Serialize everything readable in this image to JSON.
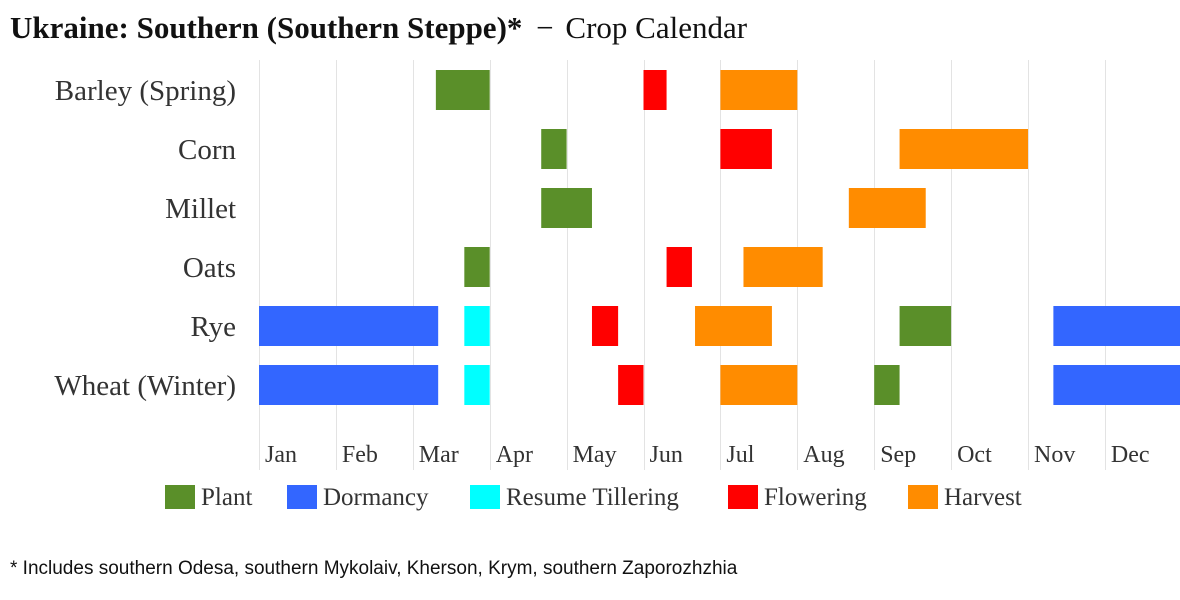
{
  "title": {
    "main": "Ukraine: Southern (Southern Steppe)*",
    "separator": "−",
    "sub": "Crop Calendar"
  },
  "footnote": "* Includes southern Odesa, southern Mykolaiv, Kherson, Krym, southern Zaporozhzhia",
  "chart_data": {
    "type": "gantt",
    "crops": [
      "Barley (Spring)",
      "Corn",
      "Millet",
      "Oats",
      "Rye",
      "Wheat (Winter)"
    ],
    "months": [
      "Jan",
      "Feb",
      "Mar",
      "Apr",
      "May",
      "Jun",
      "Jul",
      "Aug",
      "Sep",
      "Oct",
      "Nov",
      "Dec"
    ],
    "stages": [
      {
        "name": "Plant",
        "color": "#5a8f29"
      },
      {
        "name": "Dormancy",
        "color": "#3366ff"
      },
      {
        "name": "Resume Tillering",
        "color": "#00ffff"
      },
      {
        "name": "Flowering",
        "color": "#ff0000"
      },
      {
        "name": "Harvest",
        "color": "#ff8c00"
      }
    ],
    "x_range_months": [
      1,
      13
    ],
    "grid": "vertical",
    "legend": "bottom",
    "bars": [
      {
        "crop": "Barley (Spring)",
        "stage": "Plant",
        "start": 3.3,
        "end": 4.0
      },
      {
        "crop": "Barley (Spring)",
        "stage": "Flowering",
        "start": 6.0,
        "end": 6.3
      },
      {
        "crop": "Barley (Spring)",
        "stage": "Harvest",
        "start": 7.0,
        "end": 8.0
      },
      {
        "crop": "Corn",
        "stage": "Plant",
        "start": 4.67,
        "end": 5.0
      },
      {
        "crop": "Corn",
        "stage": "Flowering",
        "start": 7.0,
        "end": 7.67
      },
      {
        "crop": "Corn",
        "stage": "Harvest",
        "start": 9.33,
        "end": 11.0
      },
      {
        "crop": "Millet",
        "stage": "Plant",
        "start": 4.67,
        "end": 5.33
      },
      {
        "crop": "Millet",
        "stage": "Harvest",
        "start": 8.67,
        "end": 9.67
      },
      {
        "crop": "Oats",
        "stage": "Plant",
        "start": 3.67,
        "end": 4.0
      },
      {
        "crop": "Oats",
        "stage": "Flowering",
        "start": 6.3,
        "end": 6.63
      },
      {
        "crop": "Oats",
        "stage": "Harvest",
        "start": 7.3,
        "end": 8.33
      },
      {
        "crop": "Rye",
        "stage": "Dormancy",
        "start": 1.0,
        "end": 3.33
      },
      {
        "crop": "Rye",
        "stage": "Resume Tillering",
        "start": 3.67,
        "end": 4.0
      },
      {
        "crop": "Rye",
        "stage": "Flowering",
        "start": 5.33,
        "end": 5.67
      },
      {
        "crop": "Rye",
        "stage": "Harvest",
        "start": 6.67,
        "end": 7.67
      },
      {
        "crop": "Rye",
        "stage": "Plant",
        "start": 9.33,
        "end": 10.0
      },
      {
        "crop": "Rye",
        "stage": "Dormancy",
        "start": 11.33,
        "end": 13.0
      },
      {
        "crop": "Wheat (Winter)",
        "stage": "Dormancy",
        "start": 1.0,
        "end": 3.33
      },
      {
        "crop": "Wheat (Winter)",
        "stage": "Resume Tillering",
        "start": 3.67,
        "end": 4.0
      },
      {
        "crop": "Wheat (Winter)",
        "stage": "Flowering",
        "start": 5.67,
        "end": 6.0
      },
      {
        "crop": "Wheat (Winter)",
        "stage": "Harvest",
        "start": 7.0,
        "end": 8.0
      },
      {
        "crop": "Wheat (Winter)",
        "stage": "Plant",
        "start": 9.0,
        "end": 9.33
      },
      {
        "crop": "Wheat (Winter)",
        "stage": "Dormancy",
        "start": 11.33,
        "end": 13.0
      }
    ]
  }
}
